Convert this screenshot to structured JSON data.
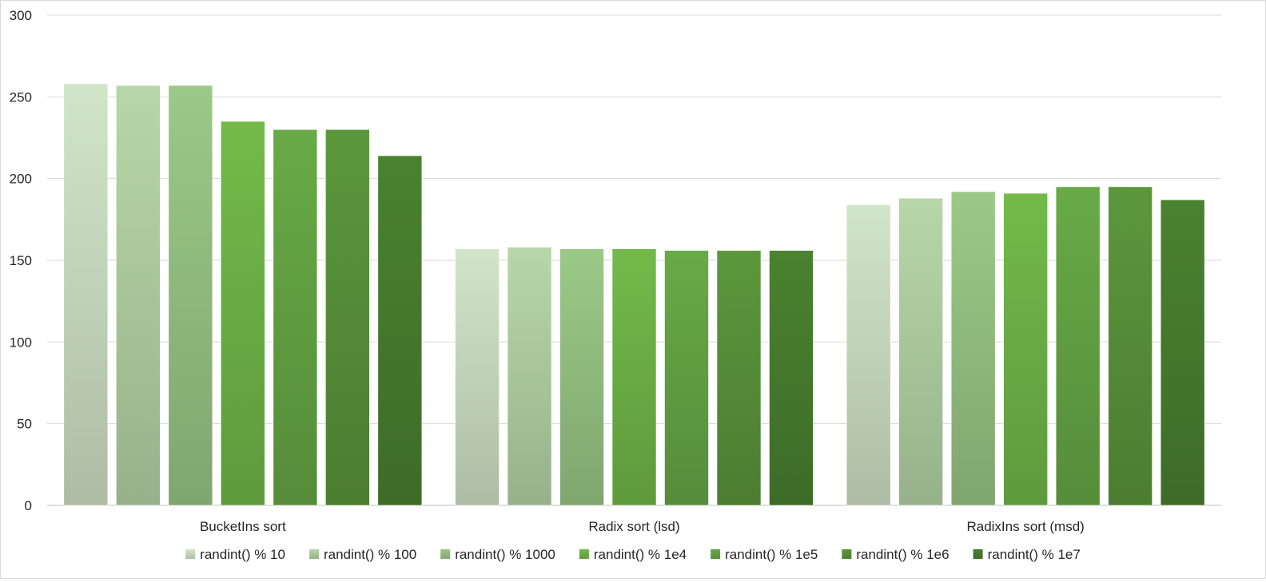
{
  "chart_data": {
    "type": "bar",
    "title": "",
    "xlabel": "",
    "ylabel": "",
    "ylim": [
      0,
      300
    ],
    "yticks": [
      0,
      50,
      100,
      150,
      200,
      250,
      300
    ],
    "grid": true,
    "legend_position": "bottom",
    "categories": [
      "BucketIns sort",
      "Radix sort (lsd)",
      "RadixIns sort (msd)"
    ],
    "series": [
      {
        "name": "randint() % 10",
        "color": "#c9dcc0",
        "values": [
          258,
          157,
          184
        ]
      },
      {
        "name": "randint() % 100",
        "color": "#b0cfa2",
        "values": [
          257,
          158,
          188
        ]
      },
      {
        "name": "randint() % 1000",
        "color": "#95c182",
        "values": [
          257,
          157,
          192
        ]
      },
      {
        "name": "randint() % 1e4",
        "color": "#6fb347",
        "values": [
          235,
          157,
          191
        ]
      },
      {
        "name": "randint() % 1e5",
        "color": "#64a344",
        "values": [
          230,
          156,
          195
        ]
      },
      {
        "name": "randint() % 1e6",
        "color": "#58913a",
        "values": [
          230,
          156,
          195
        ]
      },
      {
        "name": "randint() % 1e7",
        "color": "#477d2e",
        "values": [
          214,
          156,
          187
        ]
      }
    ]
  }
}
